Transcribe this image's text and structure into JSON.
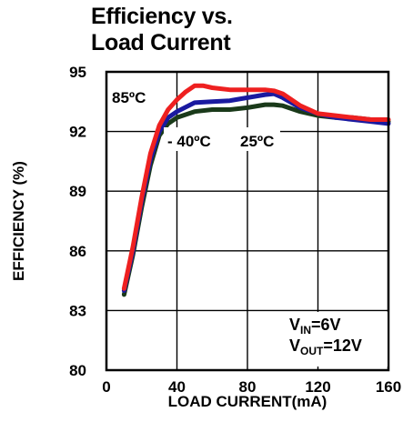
{
  "chart_data": {
    "type": "line",
    "title_line1": "Efficiency vs.",
    "title_line2": "Load Current",
    "xlabel": "LOAD CURRENT(mA)",
    "ylabel": "EFFICIENCY (%)",
    "xlim": [
      0,
      160
    ],
    "ylim": [
      80,
      95
    ],
    "xticks": [
      0,
      40,
      80,
      120,
      160
    ],
    "yticks": [
      80,
      83,
      86,
      89,
      92,
      95
    ],
    "grid": true,
    "series": [
      {
        "name": "- 40ºC",
        "color": "#1a3a1a",
        "x": [
          10,
          15,
          20,
          25,
          30,
          35,
          40,
          50,
          60,
          70,
          80,
          90,
          95,
          100,
          110,
          120,
          130,
          140,
          150,
          160
        ],
        "y": [
          83.8,
          85.8,
          88.2,
          90.3,
          91.8,
          92.4,
          92.7,
          93.0,
          93.1,
          93.1,
          93.2,
          93.35,
          93.35,
          93.3,
          93.0,
          92.8,
          92.7,
          92.7,
          92.6,
          92.5
        ]
      },
      {
        "name": "25ºC",
        "color": "#1a1aa0",
        "x": [
          10,
          15,
          20,
          25,
          30,
          35,
          40,
          50,
          60,
          70,
          80,
          90,
          95,
          100,
          110,
          120,
          130,
          140,
          150,
          160
        ],
        "y": [
          84.0,
          86.0,
          88.5,
          90.6,
          92.0,
          92.7,
          93.0,
          93.45,
          93.5,
          93.55,
          93.7,
          93.85,
          93.9,
          93.7,
          93.2,
          92.9,
          92.7,
          92.6,
          92.5,
          92.4
        ]
      },
      {
        "name": "85ºC",
        "color": "#ee2020",
        "x": [
          10,
          15,
          20,
          25,
          30,
          35,
          40,
          45,
          50,
          55,
          60,
          70,
          80,
          90,
          95,
          100,
          110,
          120,
          130,
          140,
          150,
          160
        ],
        "y": [
          84.1,
          86.2,
          88.7,
          90.9,
          92.3,
          93.1,
          93.6,
          94.0,
          94.3,
          94.3,
          94.2,
          94.1,
          94.1,
          94.1,
          94.05,
          93.9,
          93.3,
          92.9,
          92.8,
          92.7,
          92.6,
          92.6
        ]
      }
    ],
    "annotations": [
      {
        "text": "85ºC"
      },
      {
        "text": "- 40ºC"
      },
      {
        "text": "25ºC"
      }
    ],
    "conditions": {
      "vin": {
        "main": "V",
        "sub": "IN",
        "rest": "=6V"
      },
      "vout": {
        "main": "V",
        "sub": "OUT",
        "rest": "=12V"
      }
    }
  }
}
